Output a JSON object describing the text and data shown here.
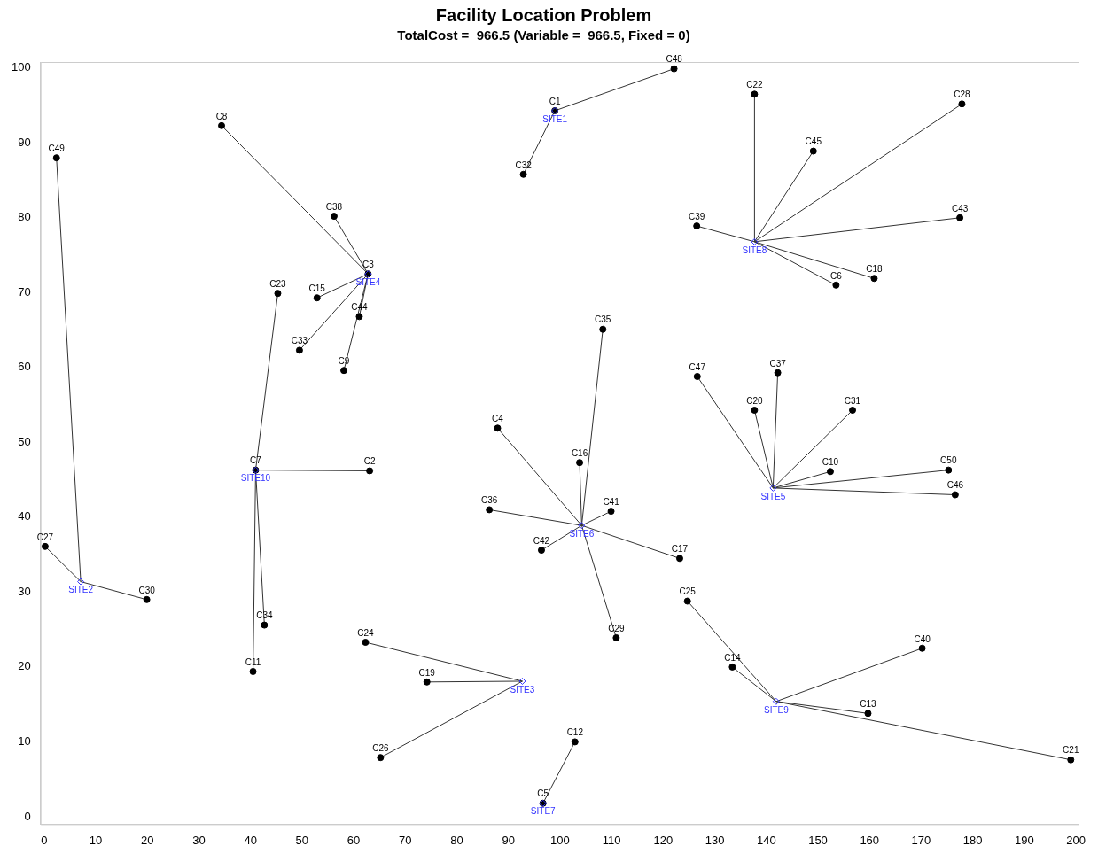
{
  "chart_data": {
    "type": "scatter",
    "title": "Facility Location Problem",
    "subtitle": "TotalCost =  966.5 (Variable =  966.5, Fixed = 0)",
    "xlim": [
      -0.7,
      200.5
    ],
    "xticks": [
      0,
      10,
      20,
      30,
      40,
      50,
      60,
      70,
      80,
      90,
      100,
      110,
      120,
      130,
      140,
      150,
      160,
      170,
      180,
      190,
      200
    ],
    "ylim": [
      -1,
      100.8
    ],
    "yticks": [
      0,
      10,
      20,
      30,
      40,
      50,
      60,
      70,
      80,
      90,
      100
    ],
    "grid": false,
    "legend": false,
    "series": [
      {
        "type": "line",
        "color": "#333333",
        "marker": "none",
        "x": [
          99.0,
          122.1
        ],
        "values": [
          94.3,
          99.9
        ]
      },
      {
        "type": "line",
        "color": "#333333",
        "marker": "none",
        "x": [
          99.0,
          92.9
        ],
        "values": [
          94.3,
          85.8
        ]
      },
      {
        "type": "line",
        "color": "#333333",
        "marker": "none",
        "x": [
          7.1,
          2.4
        ],
        "values": [
          31.4,
          88.0
        ]
      },
      {
        "type": "line",
        "color": "#333333",
        "marker": "none",
        "x": [
          7.1,
          0.2
        ],
        "values": [
          31.4,
          36.1
        ]
      },
      {
        "type": "line",
        "color": "#333333",
        "marker": "none",
        "x": [
          7.1,
          19.9
        ],
        "values": [
          31.4,
          29.0
        ]
      },
      {
        "type": "line",
        "color": "#333333",
        "marker": "none",
        "x": [
          92.7,
          62.3
        ],
        "values": [
          18.1,
          23.3
        ]
      },
      {
        "type": "line",
        "color": "#333333",
        "marker": "none",
        "x": [
          92.7,
          74.2
        ],
        "values": [
          18.1,
          18.0
        ]
      },
      {
        "type": "line",
        "color": "#333333",
        "marker": "none",
        "x": [
          92.7,
          65.2
        ],
        "values": [
          18.1,
          7.9
        ]
      },
      {
        "type": "line",
        "color": "#333333",
        "marker": "none",
        "x": [
          62.8,
          34.4
        ],
        "values": [
          72.5,
          92.3
        ]
      },
      {
        "type": "line",
        "color": "#333333",
        "marker": "none",
        "x": [
          62.8,
          56.2
        ],
        "values": [
          72.5,
          80.2
        ]
      },
      {
        "type": "line",
        "color": "#333333",
        "marker": "none",
        "x": [
          62.8,
          52.9
        ],
        "values": [
          72.5,
          69.3
        ]
      },
      {
        "type": "line",
        "color": "#333333",
        "marker": "none",
        "x": [
          62.8,
          49.5
        ],
        "values": [
          72.5,
          62.3
        ]
      },
      {
        "type": "line",
        "color": "#333333",
        "marker": "none",
        "x": [
          62.8,
          61.1
        ],
        "values": [
          72.5,
          66.8
        ]
      },
      {
        "type": "line",
        "color": "#333333",
        "marker": "none",
        "x": [
          62.8,
          58.1
        ],
        "values": [
          72.5,
          59.6
        ]
      },
      {
        "type": "line",
        "color": "#333333",
        "marker": "none",
        "x": [
          141.3,
          126.6
        ],
        "values": [
          43.9,
          58.8
        ]
      },
      {
        "type": "line",
        "color": "#333333",
        "marker": "none",
        "x": [
          141.3,
          137.7
        ],
        "values": [
          43.9,
          54.3
        ]
      },
      {
        "type": "line",
        "color": "#333333",
        "marker": "none",
        "x": [
          141.3,
          142.2
        ],
        "values": [
          43.9,
          59.3
        ]
      },
      {
        "type": "line",
        "color": "#333333",
        "marker": "none",
        "x": [
          141.3,
          156.7
        ],
        "values": [
          43.9,
          54.3
        ]
      },
      {
        "type": "line",
        "color": "#333333",
        "marker": "none",
        "x": [
          141.3,
          152.4
        ],
        "values": [
          43.9,
          46.1
        ]
      },
      {
        "type": "line",
        "color": "#333333",
        "marker": "none",
        "x": [
          141.3,
          175.3
        ],
        "values": [
          43.9,
          46.3
        ]
      },
      {
        "type": "line",
        "color": "#333333",
        "marker": "none",
        "x": [
          141.3,
          176.6
        ],
        "values": [
          43.9,
          43.0
        ]
      },
      {
        "type": "line",
        "color": "#333333",
        "marker": "none",
        "x": [
          104.2,
          87.9
        ],
        "values": [
          38.9,
          51.9
        ]
      },
      {
        "type": "line",
        "color": "#333333",
        "marker": "none",
        "x": [
          104.2,
          103.8
        ],
        "values": [
          38.9,
          47.3
        ]
      },
      {
        "type": "line",
        "color": "#333333",
        "marker": "none",
        "x": [
          104.2,
          108.3
        ],
        "values": [
          38.9,
          65.1
        ]
      },
      {
        "type": "line",
        "color": "#333333",
        "marker": "none",
        "x": [
          104.2,
          109.9
        ],
        "values": [
          38.9,
          40.8
        ]
      },
      {
        "type": "line",
        "color": "#333333",
        "marker": "none",
        "x": [
          104.2,
          86.3
        ],
        "values": [
          38.9,
          41.0
        ]
      },
      {
        "type": "line",
        "color": "#333333",
        "marker": "none",
        "x": [
          104.2,
          96.4
        ],
        "values": [
          38.9,
          35.6
        ]
      },
      {
        "type": "line",
        "color": "#333333",
        "marker": "none",
        "x": [
          104.2,
          123.2
        ],
        "values": [
          38.9,
          34.5
        ]
      },
      {
        "type": "line",
        "color": "#333333",
        "marker": "none",
        "x": [
          104.2,
          110.9
        ],
        "values": [
          38.9,
          23.9
        ]
      },
      {
        "type": "line",
        "color": "#333333",
        "marker": "none",
        "x": [
          96.7,
          102.9
        ],
        "values": [
          1.8,
          10.0
        ]
      },
      {
        "type": "line",
        "color": "#333333",
        "marker": "none",
        "x": [
          137.7,
          137.7
        ],
        "values": [
          76.8,
          96.5
        ]
      },
      {
        "type": "line",
        "color": "#333333",
        "marker": "none",
        "x": [
          137.7,
          149.1
        ],
        "values": [
          76.8,
          88.9
        ]
      },
      {
        "type": "line",
        "color": "#333333",
        "marker": "none",
        "x": [
          137.7,
          177.9
        ],
        "values": [
          76.8,
          95.2
        ]
      },
      {
        "type": "line",
        "color": "#333333",
        "marker": "none",
        "x": [
          137.7,
          177.5
        ],
        "values": [
          76.8,
          80.0
        ]
      },
      {
        "type": "line",
        "color": "#333333",
        "marker": "none",
        "x": [
          137.7,
          126.5
        ],
        "values": [
          76.8,
          78.9
        ]
      },
      {
        "type": "line",
        "color": "#333333",
        "marker": "none",
        "x": [
          137.7,
          160.9
        ],
        "values": [
          76.8,
          71.9
        ]
      },
      {
        "type": "line",
        "color": "#333333",
        "marker": "none",
        "x": [
          137.7,
          153.5
        ],
        "values": [
          76.8,
          71.0
        ]
      },
      {
        "type": "line",
        "color": "#333333",
        "marker": "none",
        "x": [
          141.9,
          124.7
        ],
        "values": [
          15.4,
          28.8
        ]
      },
      {
        "type": "line",
        "color": "#333333",
        "marker": "none",
        "x": [
          141.9,
          133.4
        ],
        "values": [
          15.4,
          20.0
        ]
      },
      {
        "type": "line",
        "color": "#333333",
        "marker": "none",
        "x": [
          141.9,
          170.2
        ],
        "values": [
          15.4,
          22.5
        ]
      },
      {
        "type": "line",
        "color": "#333333",
        "marker": "none",
        "x": [
          141.9,
          159.7
        ],
        "values": [
          15.4,
          13.8
        ]
      },
      {
        "type": "line",
        "color": "#333333",
        "marker": "none",
        "x": [
          141.9,
          199.0
        ],
        "values": [
          15.4,
          7.6
        ]
      },
      {
        "type": "line",
        "color": "#333333",
        "marker": "none",
        "x": [
          41.0,
          45.3
        ],
        "values": [
          46.3,
          69.9
        ]
      },
      {
        "type": "line",
        "color": "#333333",
        "marker": "none",
        "x": [
          41.0,
          63.1
        ],
        "values": [
          46.3,
          46.2
        ]
      },
      {
        "type": "line",
        "color": "#333333",
        "marker": "none",
        "x": [
          41.0,
          42.7
        ],
        "values": [
          46.3,
          25.6
        ]
      },
      {
        "type": "line",
        "color": "#333333",
        "marker": "none",
        "x": [
          41.0,
          40.5
        ],
        "values": [
          46.3,
          19.4
        ]
      },
      {
        "type": "scatter",
        "color": "#000000",
        "marker": "circle",
        "x": [
          99.0,
          63.1,
          62.8,
          87.9,
          96.7,
          153.5,
          41.0,
          34.4,
          58.1,
          152.4,
          40.5,
          102.9,
          159.7,
          133.4,
          52.9,
          103.8,
          123.2,
          160.9,
          74.2,
          137.7,
          199.0,
          137.7,
          45.3,
          62.3,
          124.7,
          65.2,
          0.2,
          177.9,
          110.9,
          19.9,
          156.7,
          92.9,
          49.5,
          42.7,
          108.3,
          86.3,
          142.2,
          56.2,
          126.5,
          170.2,
          109.9,
          96.4,
          177.5,
          61.1,
          149.1,
          176.6,
          126.6,
          122.1,
          2.4,
          175.3
        ],
        "values": [
          94.3,
          46.2,
          72.5,
          51.9,
          1.8,
          71.0,
          46.3,
          92.3,
          59.6,
          46.1,
          19.4,
          10.0,
          13.8,
          20.0,
          69.3,
          47.3,
          34.5,
          71.9,
          18.0,
          54.3,
          7.6,
          96.5,
          69.9,
          23.3,
          28.8,
          7.9,
          36.1,
          95.2,
          23.9,
          29.0,
          54.3,
          85.8,
          62.3,
          25.6,
          65.1,
          41.0,
          59.3,
          80.2,
          78.9,
          22.5,
          40.8,
          35.6,
          80.0,
          66.8,
          88.9,
          43.0,
          58.8,
          99.9,
          88.0,
          46.3
        ]
      },
      {
        "type": "scatter",
        "color": "#3333ff",
        "marker": "diamond",
        "x": [
          99.0,
          7.1,
          92.7,
          62.8,
          141.3,
          104.2,
          96.7,
          137.7,
          141.9,
          41.0
        ],
        "values": [
          94.3,
          31.4,
          18.1,
          72.5,
          43.9,
          38.9,
          1.8,
          76.8,
          15.4,
          46.3
        ]
      }
    ],
    "annotations": [
      {
        "text": "C1",
        "x": 99.0,
        "y": 94.3
      },
      {
        "text": "C2",
        "x": 63.1,
        "y": 46.2
      },
      {
        "text": "C3",
        "x": 62.8,
        "y": 72.5
      },
      {
        "text": "C4",
        "x": 87.9,
        "y": 51.9
      },
      {
        "text": "C5",
        "x": 96.7,
        "y": 1.8
      },
      {
        "text": "C6",
        "x": 153.5,
        "y": 71.0
      },
      {
        "text": "C7",
        "x": 41.0,
        "y": 46.3
      },
      {
        "text": "C8",
        "x": 34.4,
        "y": 92.3
      },
      {
        "text": "C9",
        "x": 58.1,
        "y": 59.6
      },
      {
        "text": "C10",
        "x": 152.4,
        "y": 46.1
      },
      {
        "text": "C11",
        "x": 40.5,
        "y": 19.4
      },
      {
        "text": "C12",
        "x": 102.9,
        "y": 10.0
      },
      {
        "text": "C13",
        "x": 159.7,
        "y": 13.8
      },
      {
        "text": "C14",
        "x": 133.4,
        "y": 20.0
      },
      {
        "text": "C15",
        "x": 52.9,
        "y": 69.3
      },
      {
        "text": "C16",
        "x": 103.8,
        "y": 47.3
      },
      {
        "text": "C17",
        "x": 123.2,
        "y": 34.5
      },
      {
        "text": "C18",
        "x": 160.9,
        "y": 71.9
      },
      {
        "text": "C19",
        "x": 74.2,
        "y": 18.0
      },
      {
        "text": "C20",
        "x": 137.7,
        "y": 54.3
      },
      {
        "text": "C21",
        "x": 199.0,
        "y": 7.6
      },
      {
        "text": "C22",
        "x": 137.7,
        "y": 96.5
      },
      {
        "text": "C23",
        "x": 45.3,
        "y": 69.9
      },
      {
        "text": "C24",
        "x": 62.3,
        "y": 23.3
      },
      {
        "text": "C25",
        "x": 124.7,
        "y": 28.8
      },
      {
        "text": "C26",
        "x": 65.2,
        "y": 7.9
      },
      {
        "text": "C27",
        "x": 0.2,
        "y": 36.1
      },
      {
        "text": "C28",
        "x": 177.9,
        "y": 95.2
      },
      {
        "text": "C29",
        "x": 110.9,
        "y": 23.9
      },
      {
        "text": "C30",
        "x": 19.9,
        "y": 29.0
      },
      {
        "text": "C31",
        "x": 156.7,
        "y": 54.3
      },
      {
        "text": "C32",
        "x": 92.9,
        "y": 85.8
      },
      {
        "text": "C33",
        "x": 49.5,
        "y": 62.3
      },
      {
        "text": "C34",
        "x": 42.7,
        "y": 25.6
      },
      {
        "text": "C35",
        "x": 108.3,
        "y": 65.1
      },
      {
        "text": "C36",
        "x": 86.3,
        "y": 41.0
      },
      {
        "text": "C37",
        "x": 142.2,
        "y": 59.3
      },
      {
        "text": "C38",
        "x": 56.2,
        "y": 80.2
      },
      {
        "text": "C39",
        "x": 126.5,
        "y": 78.9
      },
      {
        "text": "C40",
        "x": 170.2,
        "y": 22.5
      },
      {
        "text": "C41",
        "x": 109.9,
        "y": 40.8
      },
      {
        "text": "C42",
        "x": 96.4,
        "y": 35.6
      },
      {
        "text": "C43",
        "x": 177.5,
        "y": 80.0
      },
      {
        "text": "C44",
        "x": 61.1,
        "y": 66.8
      },
      {
        "text": "C45",
        "x": 149.1,
        "y": 88.9
      },
      {
        "text": "C46",
        "x": 176.6,
        "y": 43.0
      },
      {
        "text": "C47",
        "x": 126.6,
        "y": 58.8
      },
      {
        "text": "C48",
        "x": 122.1,
        "y": 99.9
      },
      {
        "text": "C49",
        "x": 2.4,
        "y": 88.0
      },
      {
        "text": "C50",
        "x": 175.3,
        "y": 46.3
      },
      {
        "text": "SITE1",
        "x": 99.0,
        "y": 94.3
      },
      {
        "text": "SITE2",
        "x": 7.1,
        "y": 31.4
      },
      {
        "text": "SITE3",
        "x": 92.7,
        "y": 18.1
      },
      {
        "text": "SITE4",
        "x": 62.8,
        "y": 72.5
      },
      {
        "text": "SITE5",
        "x": 141.3,
        "y": 43.9
      },
      {
        "text": "SITE6",
        "x": 104.2,
        "y": 38.9
      },
      {
        "text": "SITE7",
        "x": 96.7,
        "y": 1.8
      },
      {
        "text": "SITE8",
        "x": 137.7,
        "y": 76.8
      },
      {
        "text": "SITE9",
        "x": 141.9,
        "y": 15.4
      },
      {
        "text": "SITE10",
        "x": 41.0,
        "y": 46.3
      }
    ]
  }
}
